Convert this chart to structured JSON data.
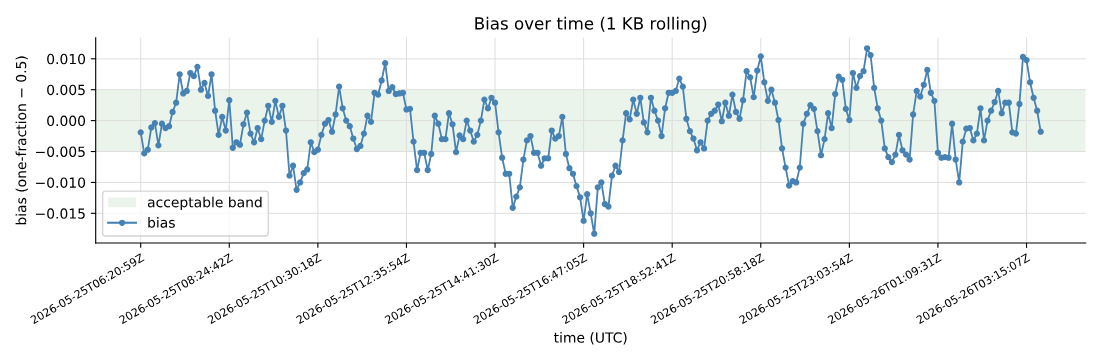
{
  "chart_data": {
    "type": "line",
    "title": "Bias over time (1 KB rolling)",
    "xlabel": "time (UTC)",
    "ylabel": "bias (one-fraction − 0.5)",
    "categories": [
      "2026-05-25T06:20:59Z",
      null,
      null,
      null,
      null,
      null,
      null,
      null,
      null,
      null,
      null,
      null,
      null,
      null,
      null,
      null,
      null,
      null,
      null,
      null,
      null,
      null,
      null,
      null,
      null,
      "2026-05-25T08:24:42Z",
      null,
      null,
      null,
      null,
      null,
      null,
      null,
      null,
      null,
      null,
      null,
      null,
      null,
      null,
      null,
      null,
      null,
      null,
      null,
      null,
      null,
      null,
      null,
      null,
      "2026-05-25T10:30:18Z",
      null,
      null,
      null,
      null,
      null,
      null,
      null,
      null,
      null,
      null,
      null,
      null,
      null,
      null,
      null,
      null,
      null,
      null,
      null,
      null,
      null,
      null,
      null,
      null,
      "2026-05-25T12:35:54Z",
      null,
      null,
      null,
      null,
      null,
      null,
      null,
      null,
      null,
      null,
      null,
      null,
      null,
      null,
      null,
      null,
      null,
      null,
      null,
      null,
      null,
      null,
      null,
      null,
      "2026-05-25T14:41:30Z",
      null,
      null,
      null,
      null,
      null,
      null,
      null,
      null,
      null,
      null,
      null,
      null,
      null,
      null,
      null,
      null,
      null,
      null,
      null,
      null,
      null,
      null,
      null,
      null,
      "2026-05-25T16:47:05Z",
      null,
      null,
      null,
      null,
      null,
      null,
      null,
      null,
      null,
      null,
      null,
      null,
      null,
      null,
      null,
      null,
      null,
      null,
      null,
      null,
      null,
      null,
      null,
      null,
      "2026-05-25T18:52:41Z",
      null,
      null,
      null,
      null,
      null,
      null,
      null,
      null,
      null,
      null,
      null,
      null,
      null,
      null,
      null,
      null,
      null,
      null,
      null,
      null,
      null,
      null,
      null,
      null,
      "2026-05-25T20:58:18Z",
      null,
      null,
      null,
      null,
      null,
      null,
      null,
      null,
      null,
      null,
      null,
      null,
      null,
      null,
      null,
      null,
      null,
      null,
      null,
      null,
      null,
      null,
      null,
      null,
      "2026-05-25T23:03:54Z",
      null,
      null,
      null,
      null,
      null,
      null,
      null,
      null,
      null,
      null,
      null,
      null,
      null,
      null,
      null,
      null,
      null,
      null,
      null,
      null,
      null,
      null,
      null,
      null,
      "2026-05-26T01:09:31Z",
      null,
      null,
      null,
      null,
      null,
      null,
      null,
      null,
      null,
      null,
      null,
      null,
      null,
      null,
      null,
      null,
      null,
      null,
      null,
      null,
      null,
      null,
      null,
      null,
      "2026-05-26T03:15:07Z",
      null,
      null,
      null,
      null
    ],
    "series": [
      {
        "name": "bias",
        "color": "#4682b4",
        "values": [
          -0.0019,
          -0.0053,
          -0.0047,
          -0.0011,
          -0.0004,
          -0.004,
          -0.0005,
          -0.0012,
          -0.0009,
          0.0014,
          0.0029,
          0.0075,
          0.0044,
          0.0048,
          0.0077,
          0.0072,
          0.0087,
          0.005,
          0.0061,
          0.004,
          0.0075,
          0.0016,
          -0.0023,
          0.0006,
          -0.0016,
          0.0033,
          -0.0044,
          -0.0035,
          -0.0039,
          -0.0006,
          0.0013,
          -0.0021,
          -0.0035,
          -0.0012,
          -0.003,
          0.0,
          0.0024,
          -0.0002,
          0.0032,
          0.0006,
          0.0024,
          -0.0016,
          -0.0089,
          -0.0073,
          -0.0112,
          -0.01,
          -0.0085,
          -0.0079,
          -0.0035,
          -0.0051,
          -0.0047,
          -0.0023,
          -0.0005,
          0.0001,
          -0.0018,
          0.001,
          0.0055,
          0.002,
          0.0,
          -0.0009,
          -0.0029,
          -0.0046,
          -0.0041,
          -0.0021,
          0.0008,
          -0.0002,
          0.0045,
          0.0042,
          0.0065,
          0.0093,
          0.0048,
          0.0054,
          0.0043,
          0.0044,
          0.0045,
          0.0018,
          0.0019,
          -0.0034,
          -0.008,
          -0.0052,
          -0.0052,
          -0.008,
          -0.0054,
          0.0008,
          -0.0005,
          -0.003,
          -0.003,
          0.0012,
          -0.0006,
          -0.0051,
          -0.0024,
          -0.003,
          0.0,
          -0.0016,
          -0.0034,
          -0.0023,
          0.0,
          0.0034,
          0.002,
          0.0037,
          0.0029,
          -0.0019,
          -0.006,
          -0.0086,
          -0.0086,
          -0.0141,
          -0.0123,
          -0.0108,
          -0.0063,
          -0.0032,
          -0.0025,
          -0.0052,
          -0.0052,
          -0.0073,
          -0.0061,
          -0.0061,
          -0.0016,
          -0.0029,
          -0.0025,
          0.0006,
          -0.0054,
          -0.0077,
          -0.0086,
          -0.0106,
          -0.0124,
          -0.0162,
          -0.0119,
          -0.015,
          -0.0183,
          -0.0108,
          -0.01,
          -0.0135,
          -0.0139,
          -0.0089,
          -0.0073,
          -0.0083,
          -0.0032,
          0.0012,
          0.0002,
          0.0034,
          0.0011,
          0.0037,
          -0.0003,
          -0.0019,
          0.0037,
          0.0016,
          0.0,
          -0.0025,
          0.002,
          0.0045,
          0.0045,
          0.0048,
          0.0068,
          0.0055,
          0.0003,
          -0.0017,
          -0.0029,
          -0.0048,
          -0.0035,
          -0.0045,
          0.0,
          0.0011,
          0.0016,
          0.0026,
          -0.0001,
          0.0029,
          0.0008,
          0.0042,
          0.0014,
          0.0003,
          0.0033,
          0.008,
          0.007,
          0.0038,
          0.0081,
          0.0104,
          0.0062,
          0.0032,
          0.005,
          0.0029,
          0.0001,
          -0.0045,
          -0.0076,
          -0.0105,
          -0.0098,
          -0.01,
          -0.0076,
          -0.0005,
          0.0011,
          0.0025,
          0.0019,
          -0.0017,
          -0.0056,
          -0.003,
          0.0012,
          -0.0012,
          0.0043,
          0.0071,
          0.0066,
          0.0019,
          0.0001,
          0.0077,
          0.0053,
          0.0072,
          0.008,
          0.0117,
          0.0106,
          0.0053,
          0.002,
          0.0,
          -0.0045,
          -0.0059,
          -0.0067,
          -0.0055,
          -0.0023,
          -0.0048,
          -0.0055,
          -0.0063,
          0.001,
          0.0048,
          0.0039,
          0.0058,
          0.0082,
          0.0045,
          0.0032,
          -0.0052,
          -0.006,
          -0.0059,
          -0.006,
          -0.0005,
          -0.0063,
          -0.01,
          -0.0034,
          -0.0013,
          -0.0012,
          -0.0032,
          -0.0021,
          0.002,
          -0.0032,
          0.0,
          0.0016,
          0.003,
          0.0048,
          0.0012,
          0.0029,
          0.0029,
          -0.0019,
          -0.0021,
          0.0027,
          0.0103,
          0.0098,
          0.0062,
          0.0037,
          0.0016,
          -0.0018
        ]
      }
    ],
    "bands": [
      {
        "axis": "y",
        "from": -0.005,
        "to": 0.005,
        "label": "acceptable band",
        "color": "#eaf4ea"
      }
    ],
    "ylim": [
      -0.0198,
      0.0134
    ],
    "yticks": [
      {
        "value": -0.015,
        "label": "−0.015"
      },
      {
        "value": -0.01,
        "label": "−0.010"
      },
      {
        "value": -0.005,
        "label": "−0.005"
      },
      {
        "value": 0,
        "label": "0.000"
      },
      {
        "value": 0.005,
        "label": "0.005"
      },
      {
        "value": 0.01,
        "label": "0.010"
      }
    ],
    "grid": true,
    "legend": "lower left",
    "marker": "circle",
    "line_style": "solid"
  }
}
